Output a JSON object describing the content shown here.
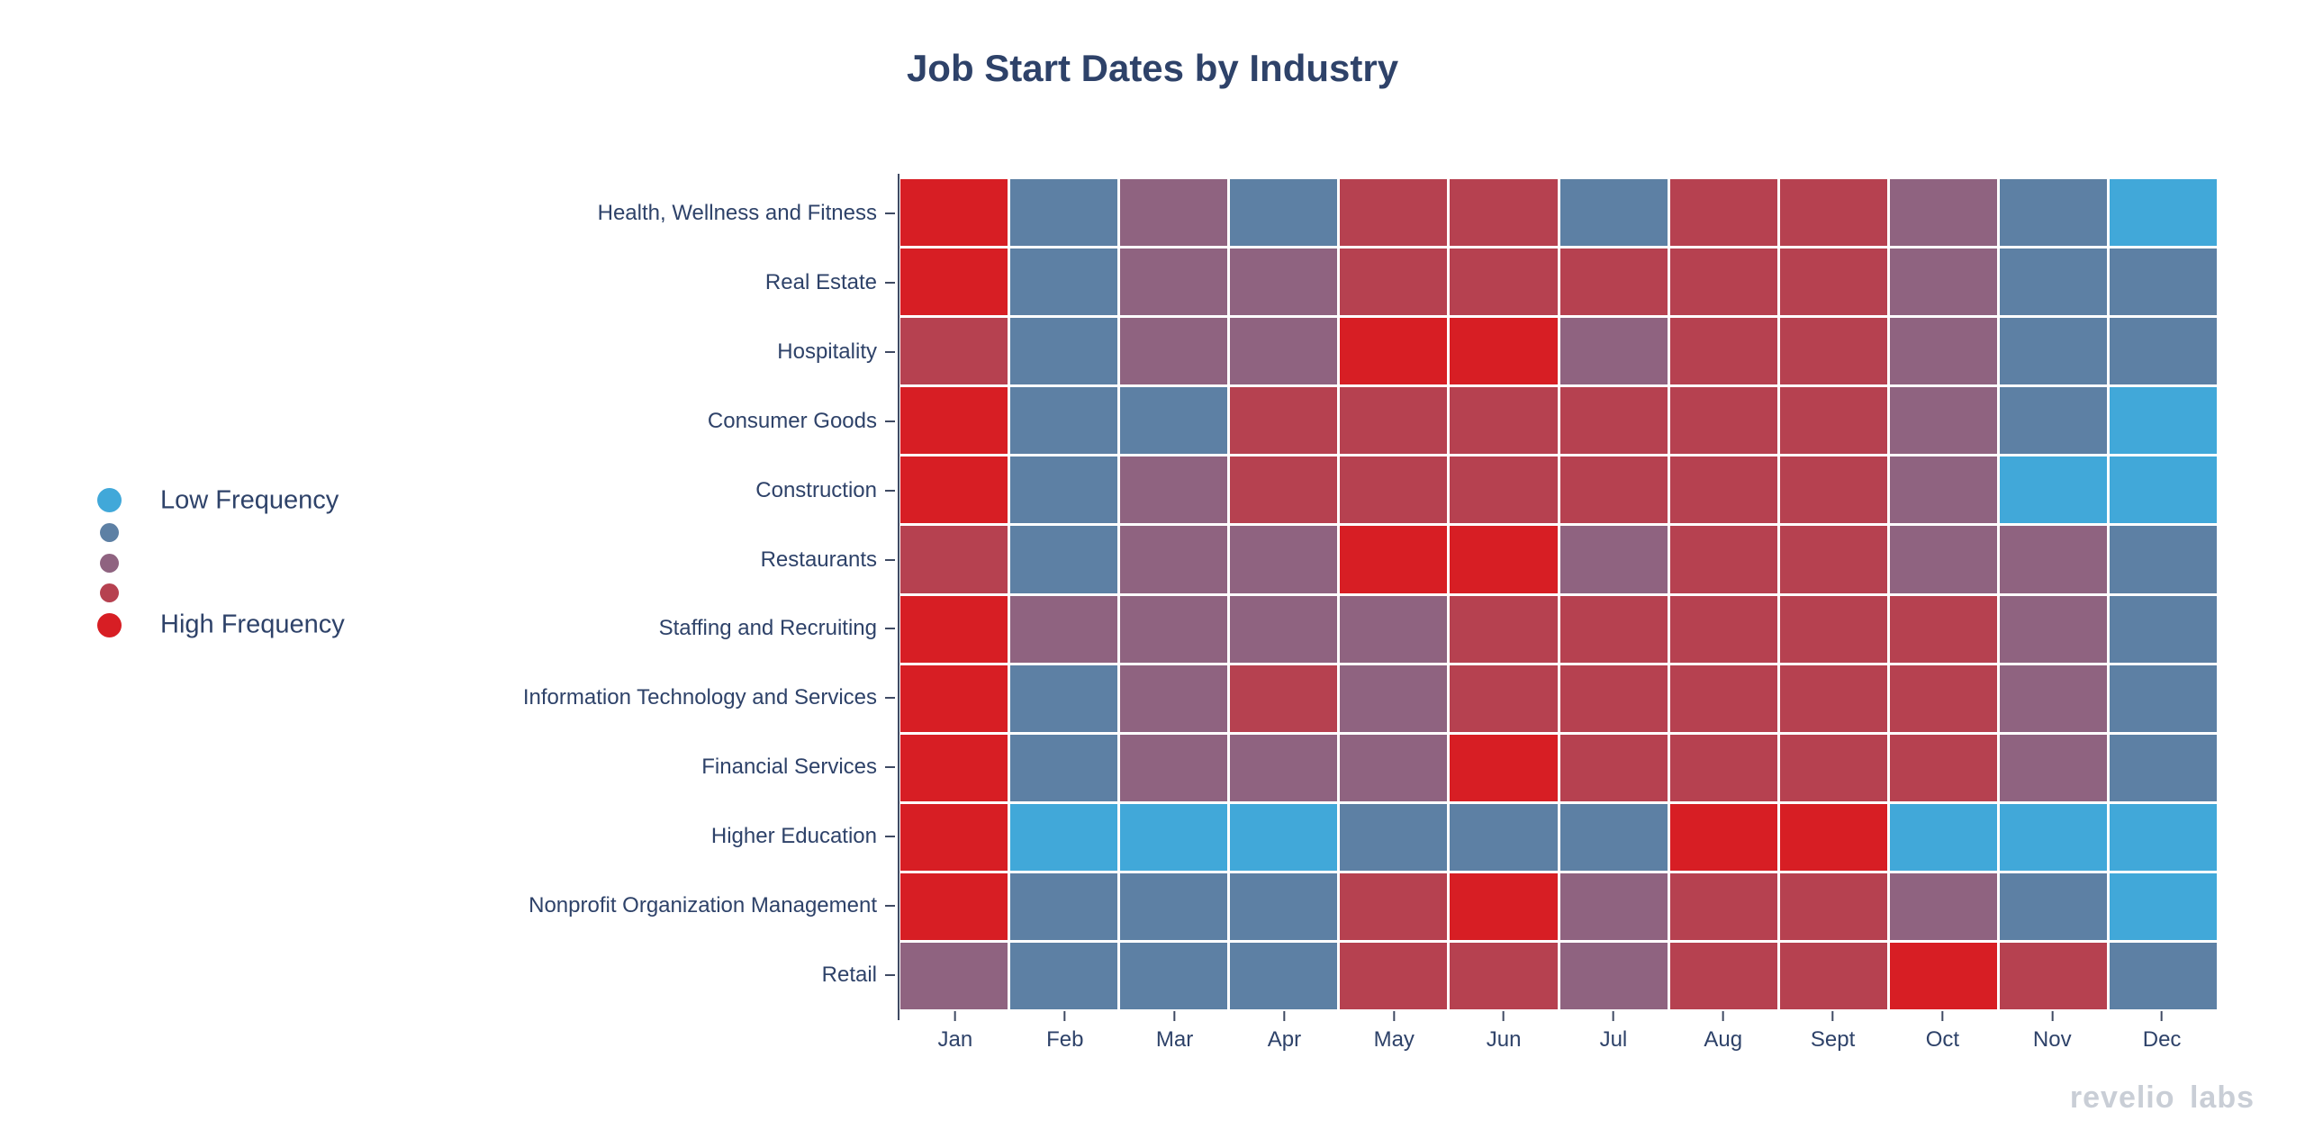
{
  "title": "Job Start Dates by Industry",
  "legend": {
    "low_label": "Low Frequency",
    "high_label": "High Frequency",
    "colors": [
      "#41a8d9",
      "#5d80a4",
      "#8f6380",
      "#b64150",
      "#d71e24"
    ]
  },
  "watermark": "revelio labs",
  "chart_data": {
    "type": "heatmap",
    "title": "Job Start Dates by Industry",
    "x": [
      "Jan",
      "Feb",
      "Mar",
      "Apr",
      "May",
      "Jun",
      "Jul",
      "Aug",
      "Sept",
      "Oct",
      "Nov",
      "Dec"
    ],
    "y": [
      "Health, Wellness and Fitness",
      "Real Estate",
      "Hospitality",
      "Consumer Goods",
      "Construction",
      "Restaurants",
      "Staffing and Recruiting",
      "Information Technology and Services",
      "Financial Services",
      "Higher Education",
      "Nonprofit Organization Management",
      "Retail"
    ],
    "value_scale": "0 = Low Frequency, 4 = High Frequency (5-step color scale, values estimated from cell colors)",
    "colorscale": [
      "#41a8d9",
      "#5d80a4",
      "#8f6380",
      "#b64150",
      "#d71e24"
    ],
    "values": [
      [
        4,
        1,
        2,
        1,
        3,
        3,
        1,
        3,
        3,
        2,
        1,
        0
      ],
      [
        4,
        1,
        2,
        2,
        3,
        3,
        3,
        3,
        3,
        2,
        1,
        1
      ],
      [
        3,
        1,
        2,
        2,
        4,
        4,
        2,
        3,
        3,
        2,
        1,
        1
      ],
      [
        4,
        1,
        1,
        3,
        3,
        3,
        3,
        3,
        3,
        2,
        1,
        0
      ],
      [
        4,
        1,
        2,
        3,
        3,
        3,
        3,
        3,
        3,
        2,
        0,
        0
      ],
      [
        3,
        1,
        2,
        2,
        4,
        4,
        2,
        3,
        3,
        2,
        2,
        1
      ],
      [
        4,
        2,
        2,
        2,
        2,
        3,
        3,
        3,
        3,
        3,
        2,
        1
      ],
      [
        4,
        1,
        2,
        3,
        2,
        3,
        3,
        3,
        3,
        3,
        2,
        1
      ],
      [
        4,
        1,
        2,
        2,
        2,
        4,
        3,
        3,
        3,
        3,
        2,
        1
      ],
      [
        4,
        0,
        0,
        0,
        1,
        1,
        1,
        4,
        4,
        0,
        0,
        0
      ],
      [
        4,
        1,
        1,
        1,
        3,
        4,
        2,
        3,
        3,
        2,
        1,
        0
      ],
      [
        2,
        1,
        1,
        1,
        3,
        3,
        2,
        3,
        3,
        4,
        3,
        1
      ]
    ],
    "legend_position": "left",
    "grid": "white 3px gaps between cells",
    "xlabel": "",
    "ylabel": ""
  }
}
